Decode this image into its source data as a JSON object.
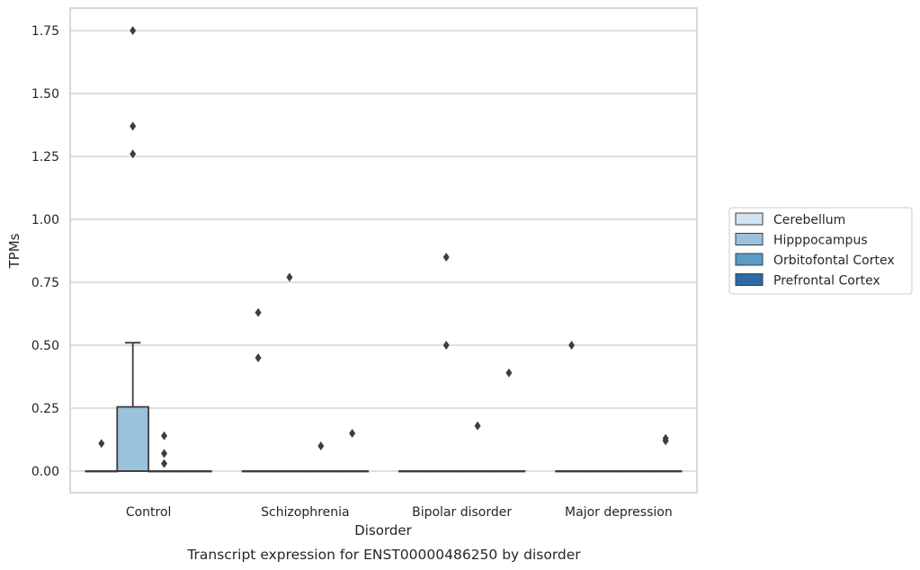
{
  "chart_data": {
    "type": "box",
    "title": "Transcript expression for ENST00000486250 by disorder",
    "xlabel": "Disorder",
    "ylabel": "TPMs",
    "ylim": [
      -0.085,
      1.84
    ],
    "yticks": [
      "0.00",
      "0.25",
      "0.50",
      "0.75",
      "1.00",
      "1.25",
      "1.50",
      "1.75"
    ],
    "ytick_values": [
      0,
      0.25,
      0.5,
      0.75,
      1.0,
      1.25,
      1.5,
      1.75
    ],
    "grid": "horizontal",
    "legend_position": "right",
    "categories": [
      "Control",
      "Schizophrenia",
      "Bipolar disorder",
      "Major depression"
    ],
    "series": [
      {
        "name": "Cerebellum",
        "color": "#d3e4f3",
        "boxes": [
          {
            "category": "Control",
            "q1": 0,
            "median": 0,
            "q3": 0,
            "whisker_low": 0,
            "whisker_high": 0,
            "outliers": [
              0.11
            ]
          },
          {
            "category": "Schizophrenia",
            "q1": 0,
            "median": 0,
            "q3": 0,
            "whisker_low": 0,
            "whisker_high": 0,
            "outliers": [
              0.45,
              0.63
            ]
          },
          {
            "category": "Bipolar disorder",
            "q1": 0,
            "median": 0,
            "q3": 0,
            "whisker_low": 0,
            "whisker_high": 0,
            "outliers": []
          },
          {
            "category": "Major depression",
            "q1": 0,
            "median": 0,
            "q3": 0,
            "whisker_low": 0,
            "whisker_high": 0,
            "outliers": [
              0.5
            ]
          }
        ]
      },
      {
        "name": "Hipppocampus",
        "color": "#9ac2dd",
        "boxes": [
          {
            "category": "Control",
            "q1": 0,
            "median": 0,
            "q3": 0.255,
            "whisker_low": 0,
            "whisker_high": 0.51,
            "outliers": [
              1.26,
              1.37,
              1.75
            ]
          },
          {
            "category": "Schizophrenia",
            "q1": 0,
            "median": 0,
            "q3": 0,
            "whisker_low": 0,
            "whisker_high": 0,
            "outliers": [
              0.77
            ]
          },
          {
            "category": "Bipolar disorder",
            "q1": 0,
            "median": 0,
            "q3": 0,
            "whisker_low": 0,
            "whisker_high": 0,
            "outliers": [
              0.5,
              0.85
            ]
          },
          {
            "category": "Major depression",
            "q1": 0,
            "median": 0,
            "q3": 0,
            "whisker_low": 0,
            "whisker_high": 0,
            "outliers": []
          }
        ]
      },
      {
        "name": "Orbitofontal Cortex",
        "color": "#5a9bc7",
        "boxes": [
          {
            "category": "Control",
            "q1": 0,
            "median": 0,
            "q3": 0,
            "whisker_low": 0,
            "whisker_high": 0,
            "outliers": [
              0.03,
              0.07,
              0.14
            ]
          },
          {
            "category": "Schizophrenia",
            "q1": 0,
            "median": 0,
            "q3": 0,
            "whisker_low": 0,
            "whisker_high": 0,
            "outliers": [
              0.1
            ]
          },
          {
            "category": "Bipolar disorder",
            "q1": 0,
            "median": 0,
            "q3": 0,
            "whisker_low": 0,
            "whisker_high": 0,
            "outliers": [
              0.18
            ]
          },
          {
            "category": "Major depression",
            "q1": 0,
            "median": 0,
            "q3": 0,
            "whisker_low": 0,
            "whisker_high": 0,
            "outliers": []
          }
        ]
      },
      {
        "name": "Prefrontal Cortex",
        "color": "#2a6aa5",
        "boxes": [
          {
            "category": "Control",
            "q1": 0,
            "median": 0,
            "q3": 0,
            "whisker_low": 0,
            "whisker_high": 0,
            "outliers": []
          },
          {
            "category": "Schizophrenia",
            "q1": 0,
            "median": 0,
            "q3": 0,
            "whisker_low": 0,
            "whisker_high": 0,
            "outliers": [
              0.15
            ]
          },
          {
            "category": "Bipolar disorder",
            "q1": 0,
            "median": 0,
            "q3": 0,
            "whisker_low": 0,
            "whisker_high": 0,
            "outliers": [
              0.39
            ]
          },
          {
            "category": "Major depression",
            "q1": 0,
            "median": 0,
            "q3": 0,
            "whisker_low": 0,
            "whisker_high": 0,
            "outliers": [
              0.12,
              0.13
            ]
          }
        ]
      }
    ]
  }
}
